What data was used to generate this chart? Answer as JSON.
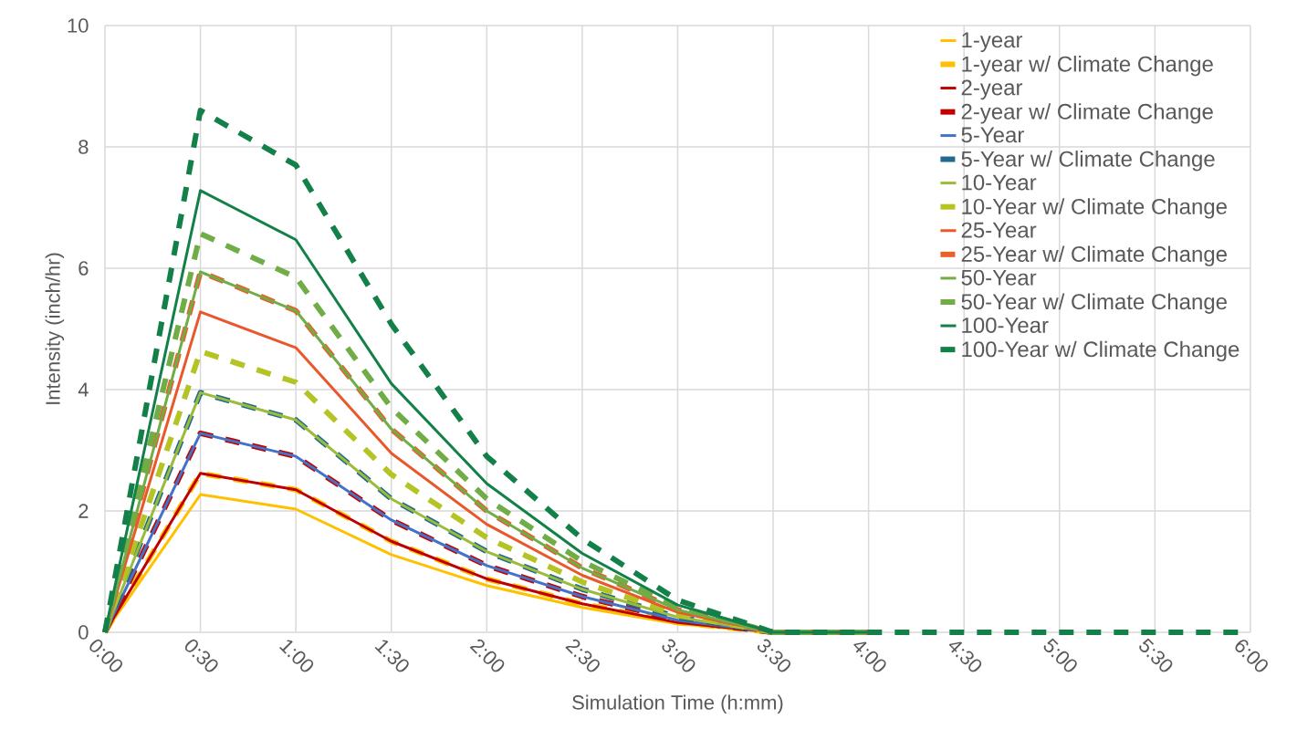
{
  "chart_data": {
    "type": "line",
    "xlabel": "Simulation Time (h:mm)",
    "ylabel": "Intensity (inch/hr)",
    "x": [
      0,
      0.5,
      1,
      1.5,
      2,
      2.5,
      3,
      3.5,
      4,
      4.5,
      5,
      5.5,
      6
    ],
    "xlim": [
      0,
      6
    ],
    "xticks": [
      {
        "value": 0,
        "label": "0:00"
      },
      {
        "value": 0.5,
        "label": "0:30"
      },
      {
        "value": 1,
        "label": "1:00"
      },
      {
        "value": 1.5,
        "label": "1:30"
      },
      {
        "value": 2,
        "label": "2:00"
      },
      {
        "value": 2.5,
        "label": "2:30"
      },
      {
        "value": 3,
        "label": "3:00"
      },
      {
        "value": 3.5,
        "label": "3:30"
      },
      {
        "value": 4,
        "label": "4:00"
      },
      {
        "value": 4.5,
        "label": "4:30"
      },
      {
        "value": 5,
        "label": "5:00"
      },
      {
        "value": 5.5,
        "label": "5:30"
      },
      {
        "value": 6,
        "label": "6:00"
      }
    ],
    "ylim": [
      0,
      10
    ],
    "yticks": [
      0,
      2,
      4,
      6,
      8,
      10
    ],
    "grid": true,
    "legend": "top right",
    "marker": "none",
    "series": [
      {
        "name": "1-year",
        "color": "#ffc000",
        "line_style": "solid",
        "values": [
          0,
          2.27,
          2.03,
          1.28,
          0.77,
          0.41,
          0.14,
          0,
          0,
          null,
          null,
          null,
          null
        ]
      },
      {
        "name": "1-year w/ Climate Change",
        "color": "#ffc000",
        "line_style": "dashed",
        "values": [
          0,
          2.62,
          2.35,
          1.5,
          0.88,
          0.47,
          0.16,
          0,
          0,
          null,
          null,
          null,
          null
        ]
      },
      {
        "name": "2-year",
        "color": "#c00000",
        "line_style": "solid",
        "values": [
          0,
          2.62,
          2.35,
          1.5,
          0.88,
          0.47,
          0.16,
          0,
          0,
          null,
          null,
          null,
          null
        ]
      },
      {
        "name": "2-year w/ Climate Change",
        "color": "#c00000",
        "line_style": "dashed",
        "values": [
          0,
          3.28,
          2.9,
          1.85,
          1.1,
          0.59,
          0.2,
          0,
          0,
          null,
          null,
          null,
          null
        ]
      },
      {
        "name": "5-Year",
        "color": "#4472c4",
        "line_style": "solid",
        "values": [
          0,
          3.28,
          2.9,
          1.85,
          1.1,
          0.59,
          0.2,
          0,
          0,
          null,
          null,
          null,
          null
        ]
      },
      {
        "name": "5-Year w/ Climate Change",
        "color": "#1f6b8f",
        "line_style": "dashed",
        "values": [
          0,
          3.95,
          3.5,
          2.2,
          1.33,
          0.71,
          0.25,
          0,
          0,
          null,
          null,
          null,
          null
        ]
      },
      {
        "name": "10-Year",
        "color": "#9bbb3b",
        "line_style": "solid",
        "values": [
          0,
          3.95,
          3.5,
          2.2,
          1.33,
          0.71,
          0.25,
          0,
          0,
          null,
          null,
          null,
          null
        ]
      },
      {
        "name": "10-Year w/ Climate Change",
        "color": "#b4c424",
        "line_style": "dashed",
        "values": [
          0,
          4.63,
          4.12,
          2.6,
          1.56,
          0.83,
          0.29,
          0,
          0,
          null,
          null,
          null,
          null
        ]
      },
      {
        "name": "25-Year",
        "color": "#e9582a",
        "line_style": "solid",
        "values": [
          0,
          5.28,
          4.69,
          2.95,
          1.78,
          0.94,
          0.33,
          0,
          0,
          null,
          null,
          null,
          null
        ]
      },
      {
        "name": "25-Year w/ Climate Change",
        "color": "#e8602c",
        "line_style": "dashed",
        "values": [
          0,
          5.94,
          5.3,
          3.35,
          2.0,
          1.06,
          0.37,
          0,
          0,
          null,
          null,
          null,
          null
        ]
      },
      {
        "name": "50-Year",
        "color": "#70ad47",
        "line_style": "solid",
        "values": [
          0,
          5.94,
          5.3,
          3.35,
          2.0,
          1.06,
          0.37,
          0,
          0,
          null,
          null,
          null,
          null
        ]
      },
      {
        "name": "50-Year w/ Climate Change",
        "color": "#70ad47",
        "line_style": "dashed",
        "values": [
          0,
          6.57,
          5.85,
          3.7,
          2.2,
          1.17,
          0.41,
          0,
          0,
          null,
          null,
          null,
          null
        ]
      },
      {
        "name": "100-Year",
        "color": "#13804a",
        "line_style": "solid",
        "values": [
          0,
          7.28,
          6.47,
          4.1,
          2.45,
          1.3,
          0.45,
          0,
          0,
          null,
          null,
          null,
          null
        ]
      },
      {
        "name": "100-Year w/ Climate Change",
        "color": "#13804a",
        "line_style": "dashed",
        "values": [
          0,
          8.6,
          7.7,
          5.08,
          2.9,
          1.54,
          0.53,
          0,
          0,
          0,
          0,
          0,
          0
        ]
      }
    ]
  }
}
